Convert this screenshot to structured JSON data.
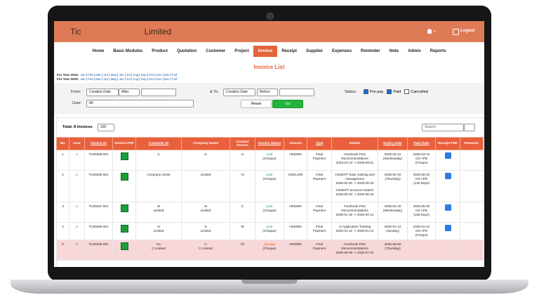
{
  "header": {
    "logo_start": "Tic",
    "logo_end": "Limited",
    "user_initial": "e",
    "logout": "Logout"
  },
  "nav": {
    "items": [
      "Home",
      "Basic Modules",
      "Product",
      "Quotation",
      "Customer",
      "Project",
      "Invoice",
      "Receipt",
      "Supplier",
      "Expenses",
      "Reminder",
      "Note",
      "Admin",
      "Reports"
    ],
    "active": 6
  },
  "title": "Invoice List",
  "separator": "|",
  "years": [
    {
      "label": "For Year 2024:",
      "months": [
        "Jan",
        "Feb",
        "Mar",
        "Apr",
        "May",
        "Jun",
        "Jul",
        "Aug",
        "Sep",
        "Oct",
        "Nov",
        "Dec",
        "Full"
      ]
    },
    {
      "label": "For Year 2025:",
      "months": [
        "Jan",
        "Feb",
        "Mar",
        "Apr",
        "May",
        "Jun",
        "Jul",
        "Aug",
        "Sep",
        "Oct",
        "Nov",
        "Dec",
        "Full"
      ]
    }
  ],
  "filters": {
    "from_label": "From:",
    "from_field": "Creation Date",
    "from_op": "After",
    "to_label": "& To:",
    "to_field": "Creation Date",
    "to_op": "Before",
    "status_label": "Status:",
    "statuses": [
      {
        "label": "Pre-pay",
        "checked": true
      },
      {
        "label": "Paid",
        "checked": true
      },
      {
        "label": "Cancelled",
        "checked": false
      }
    ],
    "user_label": "User:",
    "user_value": "All",
    "reset": "Reset",
    "go": "Go"
  },
  "table": {
    "total": "Total: 8 invoices",
    "page_size": "100",
    "search": "Search",
    "columns": [
      {
        "label": "No.",
        "sortable": false
      },
      {
        "label": "User",
        "sortable": false
      },
      {
        "label": "Invoice ID",
        "sortable": true
      },
      {
        "label": "Invoice PDF",
        "sortable": false
      },
      {
        "label": "Customer ID",
        "sortable": true
      },
      {
        "label": "Company Name",
        "sortable": false
      },
      {
        "label": "Contact Person",
        "sortable": false
      },
      {
        "label": "Invoice Status",
        "sortable": true
      },
      {
        "label": "Amount",
        "sortable": false
      },
      {
        "label": "Type",
        "sortable": true
      },
      {
        "label": "Details",
        "sortable": false
      },
      {
        "label": "Expiry Date",
        "sortable": true
      },
      {
        "label": "Paid Date",
        "sortable": true
      },
      {
        "label": "Receipt PDF",
        "sortable": false
      },
      {
        "label": "Remarks",
        "sortable": false
      }
    ],
    "rows": [
      {
        "no": "1",
        "user": "c",
        "invoice_id": "TU20259-001",
        "customer_id": [
          "C"
        ],
        "company": [
          "G"
        ],
        "contact": [
          "H"
        ],
        "status": "paid",
        "status_note": "(Cheque)",
        "status_color": "#2fb344",
        "amount": "HKD900",
        "type": [
          "Final",
          "Payment"
        ],
        "details": [
          [
            "Facebook Post",
            "Recommendations",
            "2025-03-12 -> 2025-06-11"
          ]
        ],
        "expiry": [
          "2025-03-12",
          "(Wednesday)"
        ],
        "paid": [
          "2025-03-12",
          "CD->PD",
          "(0 Days)"
        ],
        "receipt": true,
        "highlight": false
      },
      {
        "no": "2",
        "user": "c",
        "invoice_id": "TU20258-001",
        "customer_id": [
          "Company Limite"
        ],
        "company": [
          "Limited"
        ],
        "contact": [
          "Cl"
        ],
        "status": "paid",
        "status_note": "(Cheque)",
        "status_color": "#2fb344",
        "amount": "HKD1,000",
        "type": [
          "Final",
          "Payment"
        ],
        "details": [
          [
            "ChatGPT basic training and",
            "management",
            "2025-02-20 -> 2025-05-19"
          ],
          [
            "ChatGPT account creation",
            "2025-02-20 -> 2025-05-19"
          ]
        ],
        "expiry": [
          "2025-02-20",
          "(Thursday)"
        ],
        "paid": [
          "2025-06-30",
          "CD->PD",
          "(130 Days)"
        ],
        "receipt": true,
        "highlight": false
      },
      {
        "no": "3",
        "user": "c",
        "invoice_id": "TU20257-001",
        "customer_id": [
          "M",
          "Limited"
        ],
        "company": [
          "M",
          "Limited"
        ],
        "contact": [
          "C"
        ],
        "status": "paid",
        "status_note": "(Cheque)",
        "status_color": "#2fb344",
        "amount": "HKD900",
        "type": [
          "Final",
          "Payment"
        ],
        "details": [
          [
            "Facebook Post",
            "Recommendations",
            "2025-01-15 -> 2025-04-14"
          ]
        ],
        "expiry": [
          "2025-01-15",
          "(Wednesday)"
        ],
        "paid": [
          "2025-06-30",
          "CD->PD",
          "(166 Days)"
        ],
        "receipt": true,
        "highlight": false
      },
      {
        "no": "4",
        "user": "c",
        "invoice_id": "TU20256-001",
        "customer_id": [
          "N",
          "Limited"
        ],
        "company": [
          "N",
          "Limited"
        ],
        "contact": [
          "W"
        ],
        "status": "paid",
        "status_note": "(Cheque)",
        "status_color": "#2fb344",
        "amount": "HKD900",
        "type": [
          "Final",
          "Payment"
        ],
        "details": [
          [
            "AI Application Training",
            "2025-01-12 -> 2025-01-12"
          ]
        ],
        "expiry": [
          "2025-01-12",
          "(Sunday)"
        ],
        "paid": [
          "2025-01-12",
          "CD->PD",
          "(0 Days)"
        ],
        "receipt": true,
        "highlight": false
      },
      {
        "no": "5",
        "user": "c",
        "invoice_id": "TU20255-001",
        "customer_id": [
          "Ho",
          "C    Limited"
        ],
        "company": [
          "H",
          "C    Limited"
        ],
        "contact": [
          "Ch"
        ],
        "status": "pre-pay",
        "status_note": "(Cheque)",
        "status_color": "#e8590c",
        "amount": "HKD900",
        "type": [
          "Final",
          "Payment"
        ],
        "details": [
          [
            "Facebook Post",
            "Recommendations",
            "2025-06-05 -> 2025-07-04"
          ]
        ],
        "expiry": [
          "2025-06-05",
          "(Thursday)"
        ],
        "paid": [],
        "receipt": false,
        "highlight": true
      }
    ]
  }
}
